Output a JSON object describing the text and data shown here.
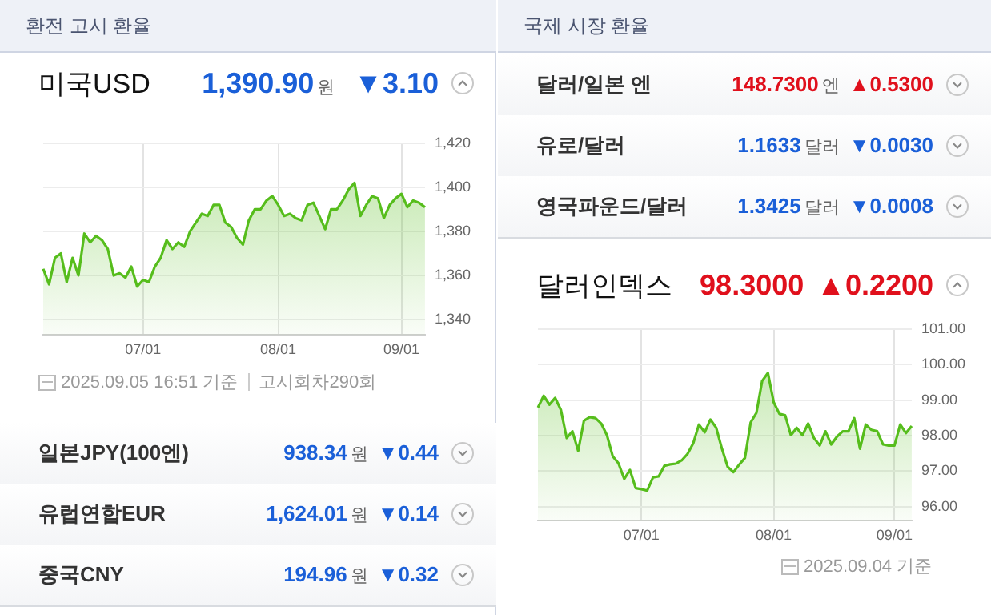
{
  "chart_data": [
    {
      "type": "other",
      "title": "환전 고시 환율",
      "annotations": [
        "미국USD",
        "1,390.90",
        "원",
        "▼3.10"
      ],
      "colors": [
        "#1a5fd8"
      ]
    },
    {
      "type": "area",
      "categories": [
        null,
        null,
        null,
        null,
        null,
        null,
        null,
        null,
        null,
        null,
        null,
        null,
        null,
        null,
        null,
        null,
        null,
        "07/01",
        null,
        null,
        null,
        null,
        null,
        null,
        null,
        null,
        null,
        null,
        null,
        null,
        null,
        null,
        null,
        null,
        null,
        null,
        null,
        null,
        null,
        null,
        "08/01",
        null,
        null,
        null,
        null,
        null,
        null,
        null,
        null,
        null,
        null,
        null,
        null,
        null,
        null,
        null,
        null,
        null,
        null,
        null,
        null,
        "09/01",
        null,
        null,
        null,
        null
      ],
      "values": [
        1363,
        1356,
        1368,
        1370,
        1357,
        1368,
        1360,
        1379,
        1375,
        1378,
        1376,
        1372,
        1360,
        1361,
        1359,
        1364,
        1355,
        1358,
        1357,
        1364,
        1368,
        1376,
        1372,
        1375,
        1373,
        1380,
        1384,
        1388,
        1387,
        1392,
        1392,
        1384,
        1382,
        1377,
        1374,
        1385,
        1390,
        1390,
        1394,
        1396,
        1392,
        1387,
        1388,
        1386,
        1385,
        1392,
        1393,
        1387,
        1381,
        1390,
        1390,
        1394,
        1399,
        1402,
        1387,
        1392,
        1396,
        1395,
        1386,
        1392,
        1395,
        1397,
        1391,
        1394,
        1393,
        1391
      ],
      "color": "#56bd1c",
      "ylim": [
        1333,
        1420
      ],
      "yticks": [
        {
          "value": 1340,
          "label": "1,340"
        },
        {
          "value": 1360,
          "label": "1,360"
        },
        {
          "value": 1380,
          "label": "1,380"
        },
        {
          "value": 1400,
          "label": "1,400"
        },
        {
          "value": 1420,
          "label": "1,420"
        }
      ],
      "grid": true,
      "marker": "none",
      "annotations": [
        "2025.09.05 16:51 기준",
        "고시회차290회"
      ]
    },
    {
      "type": "other",
      "annotations": [
        "일본JPY(100엔)",
        "938.34",
        "원",
        "▼0.44",
        "유럽연합EUR",
        "1,624.01",
        "원",
        "▼0.14",
        "중국CNY",
        "194.96",
        "원",
        "▼0.32"
      ],
      "colors": [
        "#1a5fd8",
        "#1a5fd8",
        "#1a5fd8"
      ]
    },
    {
      "type": "other",
      "title": "국제 시장 환율",
      "annotations": [
        "달러/일본 엔",
        "148.7300",
        "엔",
        "▲0.5300",
        "유로/달러",
        "1.1633",
        "달러",
        "▼0.0030",
        "영국파운드/달러",
        "1.3425",
        "달러",
        "▼0.0008"
      ],
      "colors": [
        "#e0101c",
        "#1a5fd8",
        "#1a5fd8"
      ]
    },
    {
      "type": "other",
      "annotations": [
        "달러인덱스",
        "98.3000",
        "▲0.2200"
      ],
      "colors": [
        "#e0101c"
      ]
    },
    {
      "type": "area",
      "categories": [
        null,
        null,
        null,
        null,
        null,
        null,
        null,
        null,
        null,
        null,
        null,
        null,
        null,
        null,
        null,
        null,
        null,
        null,
        "07/01",
        null,
        null,
        null,
        null,
        null,
        null,
        null,
        null,
        null,
        null,
        null,
        null,
        null,
        null,
        null,
        null,
        null,
        null,
        null,
        null,
        null,
        null,
        "08/01",
        null,
        null,
        null,
        null,
        null,
        null,
        null,
        null,
        null,
        null,
        null,
        null,
        null,
        null,
        null,
        null,
        null,
        null,
        null,
        null,
        "09/01",
        null,
        null,
        null
      ],
      "values": [
        98.79,
        99.12,
        98.87,
        99.06,
        98.72,
        97.93,
        98.12,
        97.57,
        98.42,
        98.52,
        98.49,
        98.34,
        98.01,
        97.42,
        97.22,
        96.78,
        97.03,
        96.52,
        96.49,
        96.45,
        96.82,
        96.85,
        97.15,
        97.19,
        97.21,
        97.3,
        97.48,
        97.78,
        98.31,
        98.09,
        98.45,
        98.22,
        97.63,
        97.12,
        96.97,
        97.18,
        97.37,
        98.37,
        98.64,
        99.54,
        99.76,
        98.94,
        98.61,
        98.57,
        98.01,
        98.22,
        98.01,
        98.34,
        97.93,
        97.72,
        98.12,
        97.75,
        97.97,
        98.12,
        98.12,
        98.49,
        97.63,
        98.31,
        98.16,
        98.12,
        97.75,
        97.72,
        97.72,
        98.31,
        98.07,
        98.27
      ],
      "color": "#56bd1c",
      "ylim": [
        95.6,
        101
      ],
      "yticks": [
        {
          "value": 96,
          "label": "96.00"
        },
        {
          "value": 97,
          "label": "97.00"
        },
        {
          "value": 98,
          "label": "98.00"
        },
        {
          "value": 99,
          "label": "99.00"
        },
        {
          "value": 100,
          "label": "100.00"
        },
        {
          "value": 101,
          "label": "101.00"
        }
      ],
      "grid": true,
      "marker": "none",
      "annotations": [
        "2025.09.04 기준"
      ]
    }
  ]
}
